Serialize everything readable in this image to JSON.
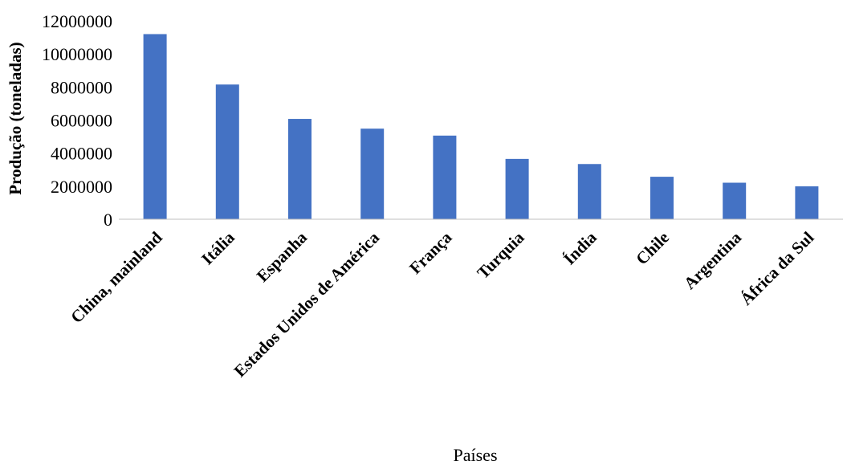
{
  "chart_data": {
    "type": "bar",
    "categories": [
      "China, mainland",
      "Itália",
      "Espanha",
      "Estados Unidos de América",
      "França",
      "Turquia",
      "Índia",
      "Chile",
      "Argentina",
      "África da Sul"
    ],
    "values": [
      11200000,
      8150000,
      6070000,
      5480000,
      5060000,
      3650000,
      3340000,
      2570000,
      2210000,
      1990000
    ],
    "ylim": [
      0,
      12000000
    ],
    "yticks": [
      "0",
      "2000000",
      "4000000",
      "6000000",
      "8000000",
      "10000000",
      "12000000"
    ],
    "ylabel": "Produção (toneladas)",
    "xlabel": "Países",
    "grid": false,
    "legend": "none",
    "bar_color": "#4472C4"
  }
}
